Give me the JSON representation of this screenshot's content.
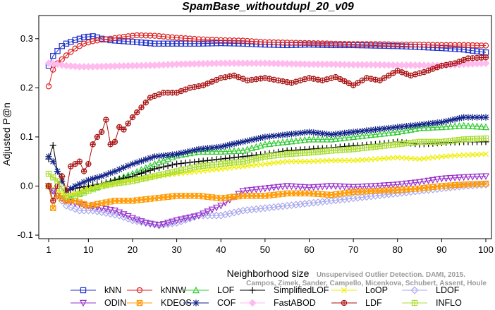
{
  "chart_data": {
    "type": "line",
    "title": "SpamBase_withoutdupl_20_v09",
    "xlabel": "Neighborhood size",
    "ylabel": "Adjusted P@n",
    "xlim": [
      1,
      100
    ],
    "ylim": [
      -0.1,
      0.34
    ],
    "x_ticks": [
      1,
      10,
      20,
      30,
      40,
      50,
      60,
      70,
      80,
      90,
      100
    ],
    "y_ticks": [
      -0.1,
      0.0,
      0.1,
      0.2,
      0.3
    ],
    "y_tick_labels": [
      "-0.1",
      "0.0",
      "0.1",
      "0.2",
      "0.3"
    ],
    "grid": false,
    "legend_position": "bottom",
    "watermark": [
      "Unsupervised Outlier Detection. DAMI, 2015.",
      "Campos, Zimek, Sander, Campello, Micenkova, Schubert, Assent, Houle"
    ],
    "series": [
      {
        "name": "kNN",
        "color": "#2233cc",
        "marker": "square",
        "x": [
          1,
          2,
          3,
          4,
          5,
          7,
          9,
          11,
          13,
          15,
          18,
          21,
          25,
          30,
          35,
          40,
          45,
          50,
          55,
          60,
          65,
          70,
          75,
          80,
          85,
          90,
          95,
          100
        ],
        "y": [
          0.245,
          0.265,
          0.275,
          0.285,
          0.29,
          0.297,
          0.303,
          0.305,
          0.3,
          0.297,
          0.295,
          0.293,
          0.29,
          0.29,
          0.29,
          0.291,
          0.29,
          0.288,
          0.287,
          0.288,
          0.287,
          0.287,
          0.286,
          0.285,
          0.283,
          0.281,
          0.278,
          0.272
        ]
      },
      {
        "name": "kNNW",
        "color": "#dd2222",
        "marker": "circle",
        "x": [
          1,
          2,
          3,
          4,
          5,
          7,
          9,
          11,
          13,
          15,
          18,
          21,
          25,
          30,
          35,
          40,
          45,
          50,
          55,
          60,
          65,
          70,
          75,
          80,
          85,
          90,
          95,
          100
        ],
        "y": [
          0.203,
          0.237,
          0.25,
          0.258,
          0.266,
          0.28,
          0.29,
          0.295,
          0.298,
          0.3,
          0.304,
          0.307,
          0.306,
          0.302,
          0.299,
          0.297,
          0.296,
          0.293,
          0.292,
          0.291,
          0.29,
          0.289,
          0.289,
          0.288,
          0.288,
          0.287,
          0.287,
          0.286
        ]
      },
      {
        "name": "LOF",
        "color": "#33cc33",
        "marker": "triangle-up",
        "x": [
          1,
          3,
          5,
          7,
          10,
          13,
          16,
          20,
          25,
          30,
          35,
          40,
          45,
          50,
          55,
          60,
          65,
          70,
          75,
          80,
          85,
          90,
          95,
          100
        ],
        "y": [
          0.0,
          -0.02,
          -0.03,
          -0.02,
          -0.005,
          0.0,
          0.012,
          0.025,
          0.045,
          0.062,
          0.07,
          0.07,
          0.072,
          0.085,
          0.09,
          0.095,
          0.095,
          0.1,
          0.105,
          0.11,
          0.118,
          0.12,
          0.123,
          0.12
        ]
      },
      {
        "name": "SimplifiedLOF",
        "color": "#000000",
        "marker": "plus",
        "x": [
          1,
          2,
          3,
          4,
          5,
          7,
          10,
          13,
          16,
          20,
          25,
          30,
          35,
          40,
          45,
          50,
          55,
          60,
          65,
          70,
          75,
          80,
          85,
          90,
          95,
          100
        ],
        "y": [
          0.055,
          0.083,
          0.03,
          0.02,
          -0.01,
          -0.005,
          0.0,
          0.005,
          0.012,
          0.02,
          0.035,
          0.045,
          0.05,
          0.055,
          0.06,
          0.065,
          0.072,
          0.075,
          0.078,
          0.082,
          0.085,
          0.09,
          0.085,
          0.088,
          0.09,
          0.09
        ]
      },
      {
        "name": "LoOP",
        "color": "#eeee00",
        "marker": "x",
        "x": [
          1,
          3,
          5,
          7,
          10,
          13,
          16,
          20,
          25,
          30,
          35,
          40,
          45,
          50,
          55,
          60,
          65,
          70,
          75,
          80,
          85,
          90,
          95,
          100
        ],
        "y": [
          0.0,
          -0.01,
          -0.02,
          -0.015,
          -0.005,
          0.0,
          0.005,
          0.012,
          0.02,
          0.025,
          0.03,
          0.035,
          0.04,
          0.045,
          0.05,
          0.05,
          0.052,
          0.052,
          0.055,
          0.058,
          0.055,
          0.06,
          0.063,
          0.065
        ]
      },
      {
        "name": "LDOF",
        "color": "#aaaaee",
        "marker": "diamond",
        "x": [
          1,
          3,
          5,
          8,
          11,
          14,
          17,
          20,
          23,
          26,
          30,
          35,
          40,
          45,
          50,
          55,
          60,
          65,
          70,
          75,
          80,
          85,
          90,
          95,
          100
        ],
        "y": [
          0.0,
          -0.02,
          -0.04,
          -0.05,
          -0.05,
          -0.055,
          -0.06,
          -0.07,
          -0.075,
          -0.08,
          -0.075,
          -0.06,
          -0.06,
          -0.05,
          -0.045,
          -0.04,
          -0.035,
          -0.03,
          -0.025,
          -0.02,
          -0.015,
          -0.01,
          -0.005,
          0.0,
          0.003
        ]
      },
      {
        "name": "ODIN",
        "color": "#9933cc",
        "marker": "triangle-down",
        "x": [
          1,
          3,
          5,
          7,
          10,
          13,
          16,
          20,
          23,
          26,
          30,
          35,
          40,
          45,
          50,
          55,
          60,
          65,
          70,
          75,
          80,
          85,
          90,
          95,
          100
        ],
        "y": [
          0.0,
          -0.02,
          -0.03,
          -0.035,
          -0.04,
          -0.045,
          -0.05,
          -0.065,
          -0.075,
          -0.08,
          -0.07,
          -0.06,
          -0.04,
          -0.01,
          -0.005,
          0.0,
          -0.003,
          0.0,
          -0.002,
          0.0,
          0.003,
          0.008,
          0.015,
          0.018,
          0.02
        ]
      },
      {
        "name": "KDEOS",
        "color": "#ff9900",
        "marker": "square-x",
        "x": [
          1,
          2,
          3,
          5,
          7,
          10,
          13,
          16,
          20,
          25,
          30,
          35,
          40,
          45,
          50,
          55,
          60,
          65,
          70,
          75,
          80,
          85,
          90,
          95,
          100
        ],
        "y": [
          0.0,
          -0.045,
          -0.02,
          -0.03,
          -0.03,
          -0.04,
          -0.035,
          -0.03,
          -0.03,
          -0.025,
          -0.02,
          -0.02,
          -0.025,
          -0.02,
          -0.02,
          -0.015,
          -0.015,
          -0.018,
          -0.012,
          -0.01,
          -0.008,
          -0.005,
          0.0,
          0.003,
          0.005
        ]
      },
      {
        "name": "COF",
        "color": "#112288",
        "marker": "star",
        "x": [
          1,
          2,
          3,
          5,
          7,
          10,
          13,
          16,
          20,
          25,
          30,
          35,
          40,
          45,
          50,
          55,
          60,
          65,
          70,
          75,
          80,
          85,
          90,
          95,
          100
        ],
        "y": [
          0.06,
          0.05,
          0.03,
          -0.01,
          0.0,
          0.012,
          0.02,
          0.03,
          0.045,
          0.06,
          0.065,
          0.075,
          0.08,
          0.09,
          0.1,
          0.105,
          0.11,
          0.105,
          0.11,
          0.115,
          0.12,
          0.125,
          0.13,
          0.14,
          0.14
        ]
      },
      {
        "name": "FastABOD",
        "color": "#ffbbee",
        "marker": "diamond-filled",
        "x": [
          1,
          3,
          5,
          8,
          11,
          15,
          20,
          25,
          30,
          35,
          40,
          45,
          50,
          55,
          60,
          65,
          70,
          75,
          80,
          85,
          90,
          95,
          100
        ],
        "y": [
          0.25,
          0.248,
          0.245,
          0.243,
          0.243,
          0.244,
          0.245,
          0.246,
          0.248,
          0.249,
          0.25,
          0.25,
          0.25,
          0.249,
          0.248,
          0.248,
          0.247,
          0.247,
          0.246,
          0.246,
          0.245,
          0.248,
          0.25
        ]
      },
      {
        "name": "LDF",
        "color": "#aa1111",
        "marker": "circle-plus",
        "x": [
          1,
          2,
          3,
          4,
          5,
          6,
          7,
          8,
          9,
          10,
          11,
          12,
          13,
          14,
          15,
          16,
          17,
          18,
          20,
          22,
          24,
          27,
          30,
          33,
          36,
          40,
          43,
          46,
          50,
          53,
          56,
          60,
          63,
          66,
          70,
          73,
          76,
          80,
          83,
          86,
          90,
          93,
          96,
          100
        ],
        "y": [
          0.0,
          -0.03,
          0.0,
          0.02,
          -0.01,
          0.04,
          0.045,
          0.05,
          0.03,
          0.045,
          0.085,
          0.1,
          0.11,
          0.135,
          0.085,
          0.09,
          0.12,
          0.115,
          0.14,
          0.16,
          0.18,
          0.19,
          0.19,
          0.2,
          0.205,
          0.22,
          0.225,
          0.215,
          0.22,
          0.215,
          0.21,
          0.22,
          0.215,
          0.222,
          0.205,
          0.22,
          0.215,
          0.235,
          0.225,
          0.232,
          0.245,
          0.25,
          0.26,
          0.262
        ]
      },
      {
        "name": "INFLO",
        "color": "#aadd33",
        "marker": "square-plus",
        "x": [
          1,
          3,
          5,
          7,
          10,
          13,
          16,
          20,
          25,
          30,
          35,
          40,
          45,
          50,
          55,
          60,
          65,
          70,
          75,
          80,
          85,
          90,
          95,
          100
        ],
        "y": [
          0.025,
          0.01,
          -0.02,
          -0.02,
          -0.01,
          0.0,
          0.005,
          0.01,
          0.02,
          0.03,
          0.04,
          0.045,
          0.05,
          0.06,
          0.065,
          0.068,
          0.072,
          0.075,
          0.08,
          0.085,
          0.09,
          0.09,
          0.095,
          0.097
        ]
      }
    ],
    "legend_order": [
      "kNN",
      "kNNW",
      "LOF",
      "SimplifiedLOF",
      "LoOP",
      "LDOF",
      "ODIN",
      "KDEOS",
      "COF",
      "FastABOD",
      "LDF",
      "INFLO"
    ]
  }
}
